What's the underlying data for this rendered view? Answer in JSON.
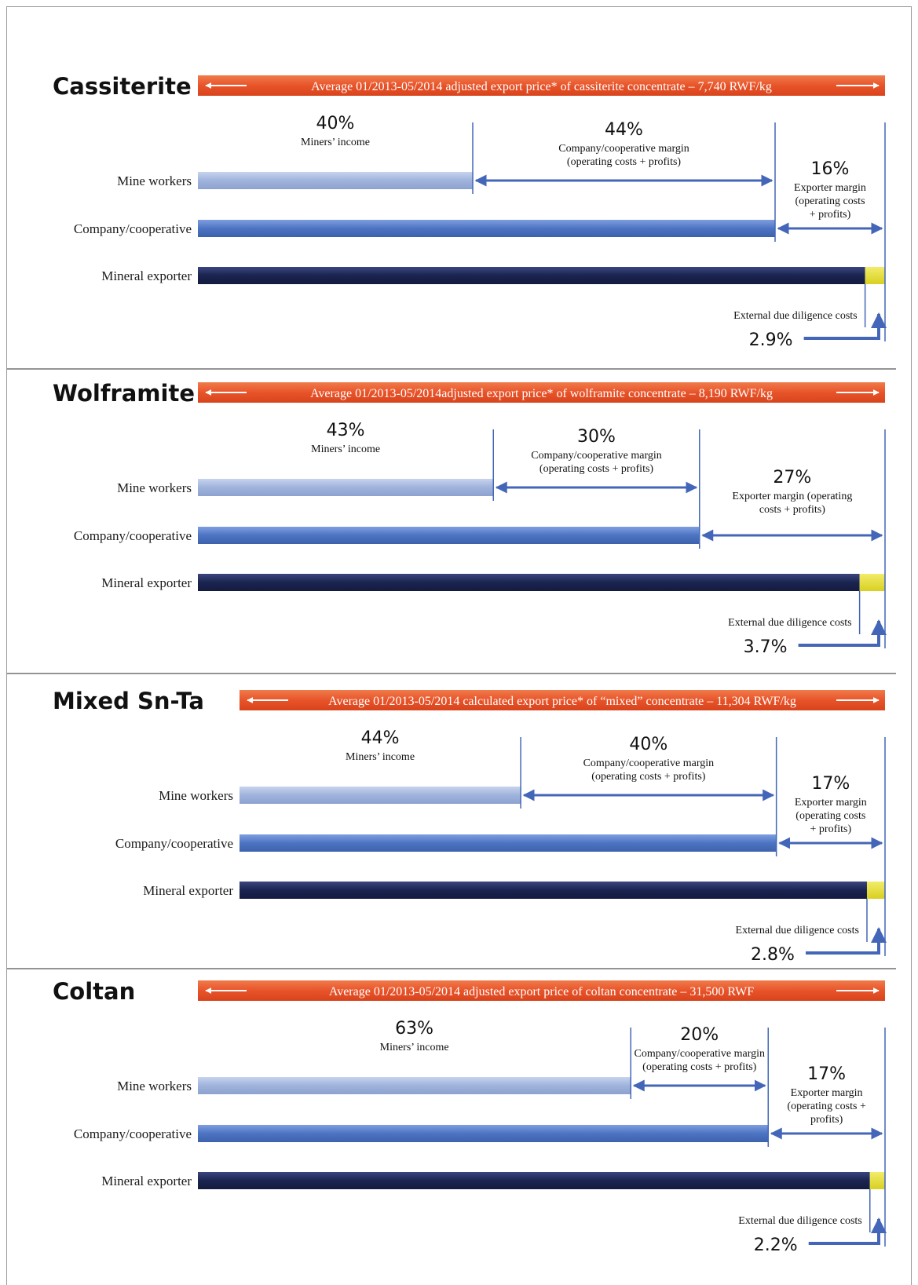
{
  "chart_data": [
    {
      "type": "bar",
      "title": "Cassiterite",
      "banner": "Average 01/2013-05/2014 adjusted export  price* of cassiterite concentrate – 7,740 RWF/kg",
      "rows": [
        "Mine workers",
        "Company/cooperative",
        "Mineral exporter"
      ],
      "segments": [
        {
          "pct": "40%",
          "value": 40,
          "caption": [
            "Miners’ income"
          ]
        },
        {
          "pct": "44%",
          "value": 44,
          "caption": [
            "Company/cooperative margin",
            "(operating costs + profits)"
          ]
        },
        {
          "pct": "16%",
          "value": 16,
          "caption": [
            "Exporter margin",
            "(operating costs",
            "+ profits)"
          ]
        }
      ],
      "due_diligence": {
        "label": "External due diligence costs",
        "pct": "2.9%",
        "value": 2.9
      }
    },
    {
      "type": "bar",
      "title": "Wolframite",
      "banner": "Average 01/2013-05/2014adjusted export price* of wolframite concentrate – 8,190 RWF/kg",
      "rows": [
        "Mine workers",
        "Company/cooperative",
        "Mineral exporter"
      ],
      "segments": [
        {
          "pct": "43%",
          "value": 43,
          "caption": [
            "Miners’ income"
          ]
        },
        {
          "pct": "30%",
          "value": 30,
          "caption": [
            "Company/cooperative margin",
            "(operating costs + profits)"
          ]
        },
        {
          "pct": "27%",
          "value": 27,
          "caption": [
            "Exporter margin (operating",
            "costs + profits)"
          ]
        }
      ],
      "due_diligence": {
        "label": "External due diligence costs",
        "pct": "3.7%",
        "value": 3.7
      }
    },
    {
      "type": "bar",
      "title": "Mixed Sn-Ta",
      "banner": "Average 01/2013-05/2014 calculated export price* of “mixed” concentrate – 11,304 RWF/kg",
      "rows": [
        "Mine workers",
        "Company/cooperative",
        "Mineral exporter"
      ],
      "segments": [
        {
          "pct": "44%",
          "value": 44,
          "caption": [
            "Miners’ income"
          ]
        },
        {
          "pct": "40%",
          "value": 40,
          "caption": [
            "Company/cooperative margin",
            "(operating costs + profits)"
          ]
        },
        {
          "pct": "17%",
          "value": 17,
          "caption": [
            "Exporter margin",
            "(operating costs",
            "+ profits)"
          ]
        }
      ],
      "due_diligence": {
        "label": "External due diligence costs",
        "pct": "2.8%",
        "value": 2.8
      }
    },
    {
      "type": "bar",
      "title": "Coltan",
      "banner": "Average 01/2013-05/2014 adjusted export  price of coltan concentrate – 31,500 RWF",
      "rows": [
        "Mine workers",
        "Company/cooperative",
        "Mineral exporter"
      ],
      "segments": [
        {
          "pct": "63%",
          "value": 63,
          "caption": [
            "Miners’ income"
          ]
        },
        {
          "pct": "20%",
          "value": 20,
          "caption": [
            "Company/cooperative margin",
            "(operating costs + profits)"
          ]
        },
        {
          "pct": "17%",
          "value": 17,
          "caption": [
            "Exporter margin",
            "(operating costs +",
            "profits)"
          ]
        }
      ],
      "due_diligence": {
        "label": "External due diligence costs",
        "pct": "2.2%",
        "value": 2.2
      }
    }
  ],
  "colors": {
    "banner": "#e8542a",
    "mine_workers_bar": "#9fb3dc",
    "company_bar": "#4d74c2",
    "exporter_bar": "#1b2450",
    "due_diligence": "#e3dc2e",
    "arrow": "#4466b8",
    "divider": "#555555"
  }
}
